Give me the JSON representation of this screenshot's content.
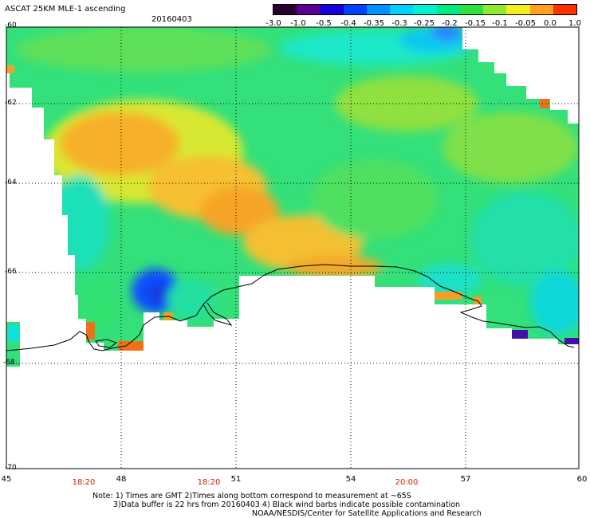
{
  "header": {
    "title": "ASCAT 25KM MLE-1 ascending",
    "date": "20160403"
  },
  "colorbar": {
    "ticks": [
      "-3.0",
      "-1.0",
      "-0.5",
      "-0.4",
      "-0.35",
      "-0.3",
      "-0.25",
      "-0.2",
      "-0.15",
      "-0.1",
      "-0.05",
      "0.0",
      "1.0"
    ],
    "colors": [
      "#2a0030",
      "#5a0090",
      "#1800d8",
      "#0040ff",
      "#0090ff",
      "#00d0ff",
      "#00f0d0",
      "#00e880",
      "#30e040",
      "#90e830",
      "#f0f020",
      "#ffa020",
      "#ff3000"
    ]
  },
  "map": {
    "lat_ticks": [
      "-60",
      "-62",
      "-64",
      "-66",
      "-68",
      "-70"
    ],
    "lon_ticks": [
      "45",
      "48",
      "51",
      "54",
      "57",
      "60"
    ],
    "times": [
      "18:20",
      "18:20",
      "20:00"
    ],
    "lat_range": [
      -70,
      -60
    ],
    "lon_range": [
      45,
      60
    ]
  },
  "notes": [
    "Note: 1) Times are GMT 2)Times along bottom correspond to measurement at ~65S",
    "3)Data buffer is 22 hrs from 20160403 4) Black wind barbs indicate possible contamination",
    "NOAA/NESDIS/Center for Satellite Applications and Research"
  ]
}
